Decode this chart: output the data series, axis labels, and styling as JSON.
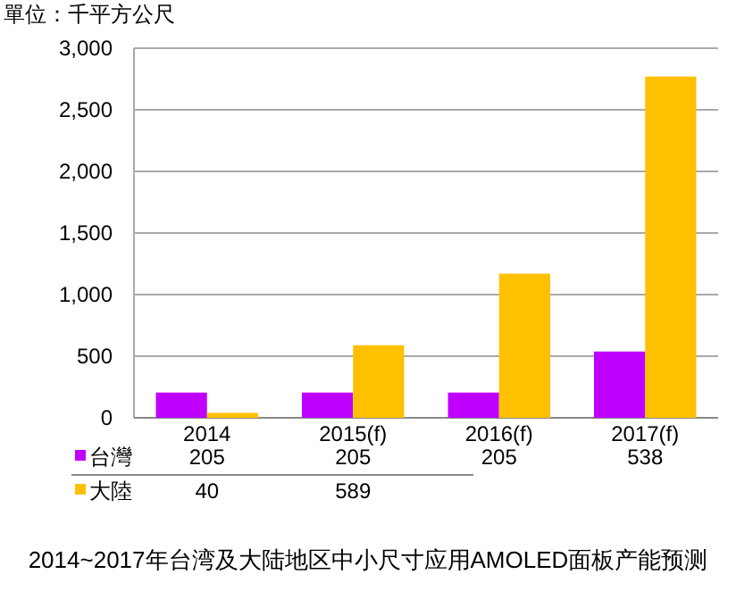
{
  "chart_data": {
    "type": "bar",
    "title": "2014~2017年台湾及大陆地区中小尺寸应用AMOLED面板产能预测",
    "ylabel": "單位：千平方公尺",
    "categories": [
      "2014",
      "2015(f)",
      "2016(f)",
      "2017(f)"
    ],
    "series": [
      {
        "name": "台灣",
        "color": "#bf00ff",
        "values": [
          205,
          205,
          205,
          538
        ],
        "value_labels": [
          "205",
          "205",
          "205",
          "538"
        ]
      },
      {
        "name": "大陸",
        "color": "#ffc000",
        "values": [
          40,
          589,
          1170,
          2770
        ],
        "value_labels": [
          "40",
          "589",
          null,
          null
        ]
      }
    ],
    "ylim": [
      0,
      3000
    ],
    "yticks": [
      0,
      {
        "value": 500,
        "label": "500"
      },
      {
        "value": 1000,
        "label": "1,000"
      },
      {
        "value": 1500,
        "label": "1,500"
      },
      {
        "value": 2000,
        "label": "2,000"
      },
      {
        "value": 2500,
        "label": "2,500"
      },
      {
        "value": 3000,
        "label": "3,000"
      }
    ],
    "grid": "y",
    "legend": "bottom"
  }
}
